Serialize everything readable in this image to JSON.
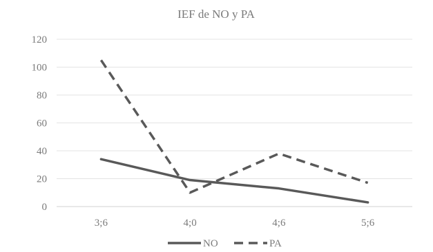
{
  "chart_data": {
    "type": "line",
    "title": "IEF de NO y PA",
    "xlabel": "",
    "ylabel": "",
    "categories": [
      "3;6",
      "4;0",
      "4;6",
      "5;6"
    ],
    "ylim": [
      0,
      120
    ],
    "yticks": [
      0,
      20,
      40,
      60,
      80,
      100,
      120
    ],
    "grid": true,
    "legend_position": "bottom",
    "series": [
      {
        "name": "NO",
        "values": [
          34,
          19,
          13,
          3
        ],
        "color": "#595959",
        "dash": "solid"
      },
      {
        "name": "PA",
        "values": [
          105,
          10,
          38,
          17
        ],
        "color": "#595959",
        "dash": "dashed"
      }
    ]
  }
}
